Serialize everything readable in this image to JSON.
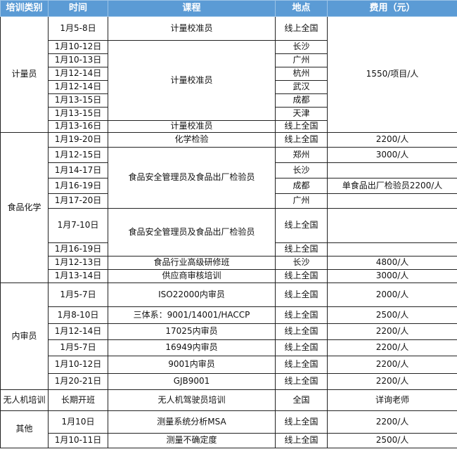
{
  "header": [
    "培训类别",
    "时间",
    "课程",
    "地点",
    "费用（元）"
  ],
  "categories": [
    "计量员",
    "食品化学",
    "内审员",
    "无人机培训",
    "其他"
  ],
  "rows": [
    {
      "date": "1月5-8日",
      "course": "计量校准员",
      "location": "线上全国",
      "fee": "1550/项目/人"
    },
    {
      "date": "1月10-12日",
      "course": "计量校准员",
      "location": "长沙"
    },
    {
      "date": "1月10-13日",
      "location": "广州"
    },
    {
      "date": "1月12-14日",
      "location": "杭州"
    },
    {
      "date": "1月12-14日",
      "location": "武汉"
    },
    {
      "date": "1月13-15日",
      "location": "成都"
    },
    {
      "date": "1月13-15日",
      "location": "天津"
    },
    {
      "date": "1月13-16日",
      "course": "计量校准员",
      "location": "线上全国"
    },
    {
      "date": "1月19-20日",
      "course": "化学检验",
      "location": "线上全国",
      "fee": "2200/人"
    },
    {
      "date": "1月12-15日",
      "course": "食品安全管理员及食品出厂检验员",
      "location": "郑州",
      "fee": "3000/人"
    },
    {
      "date": "1月14-17日",
      "location": "长沙",
      "fee": ""
    },
    {
      "date": "1月16-19日",
      "location": "成都",
      "fee": "单食品出厂检验员2200/人"
    },
    {
      "date": "1月17-20日",
      "location": "广州",
      "fee": ""
    },
    {
      "date": "1月7-10日",
      "course": "食品安全管理员及食品出厂检验员",
      "location": "线上全国",
      "fee": ""
    },
    {
      "date": "1月16-19日",
      "location": "线上全国",
      "fee": ""
    },
    {
      "date": "1月12-13日",
      "course": "食品行业高级研修班",
      "location": "长沙",
      "fee": "4800/人"
    },
    {
      "date": "1月13-14日",
      "course": "供应商审核培训",
      "location": "线上全国",
      "fee": "3000/人"
    },
    {
      "date": "1月5-7日",
      "course": "ISO22000内审员",
      "location": "线上全国",
      "fee": "2000/人"
    },
    {
      "date": "1月8-10日",
      "course": "三体系：9001/14001/HACCP",
      "location": "线上全国",
      "fee": "2500/人"
    },
    {
      "date": "1月12-14日",
      "course": "17025内审员",
      "location": "线上全国",
      "fee": "2200/人"
    },
    {
      "date": "1月5-7日",
      "course": "16949内审员",
      "location": "线上全国",
      "fee": "2200/人"
    },
    {
      "date": "1月10-12日",
      "course": "9001内审员",
      "location": "线上全国",
      "fee": "2200/人"
    },
    {
      "date": "1月20-21日",
      "course": "GJB9001",
      "location": "线上全国",
      "fee": "2200/人"
    },
    {
      "date": "长期开班",
      "course": "无人机驾驶员培训",
      "location": "全国",
      "fee": "详询老师"
    },
    {
      "date": "1月10日",
      "course": "测量系统分析MSA",
      "location": "线上全国",
      "fee": "2200/人"
    },
    {
      "date": "1月10-11日",
      "course": "测量不确定度",
      "location": "线上全国",
      "fee": "2500/人"
    }
  ],
  "colors": {
    "header_bg": "#5b9bd5",
    "header_text": "#ffffff",
    "border": "#222222"
  }
}
